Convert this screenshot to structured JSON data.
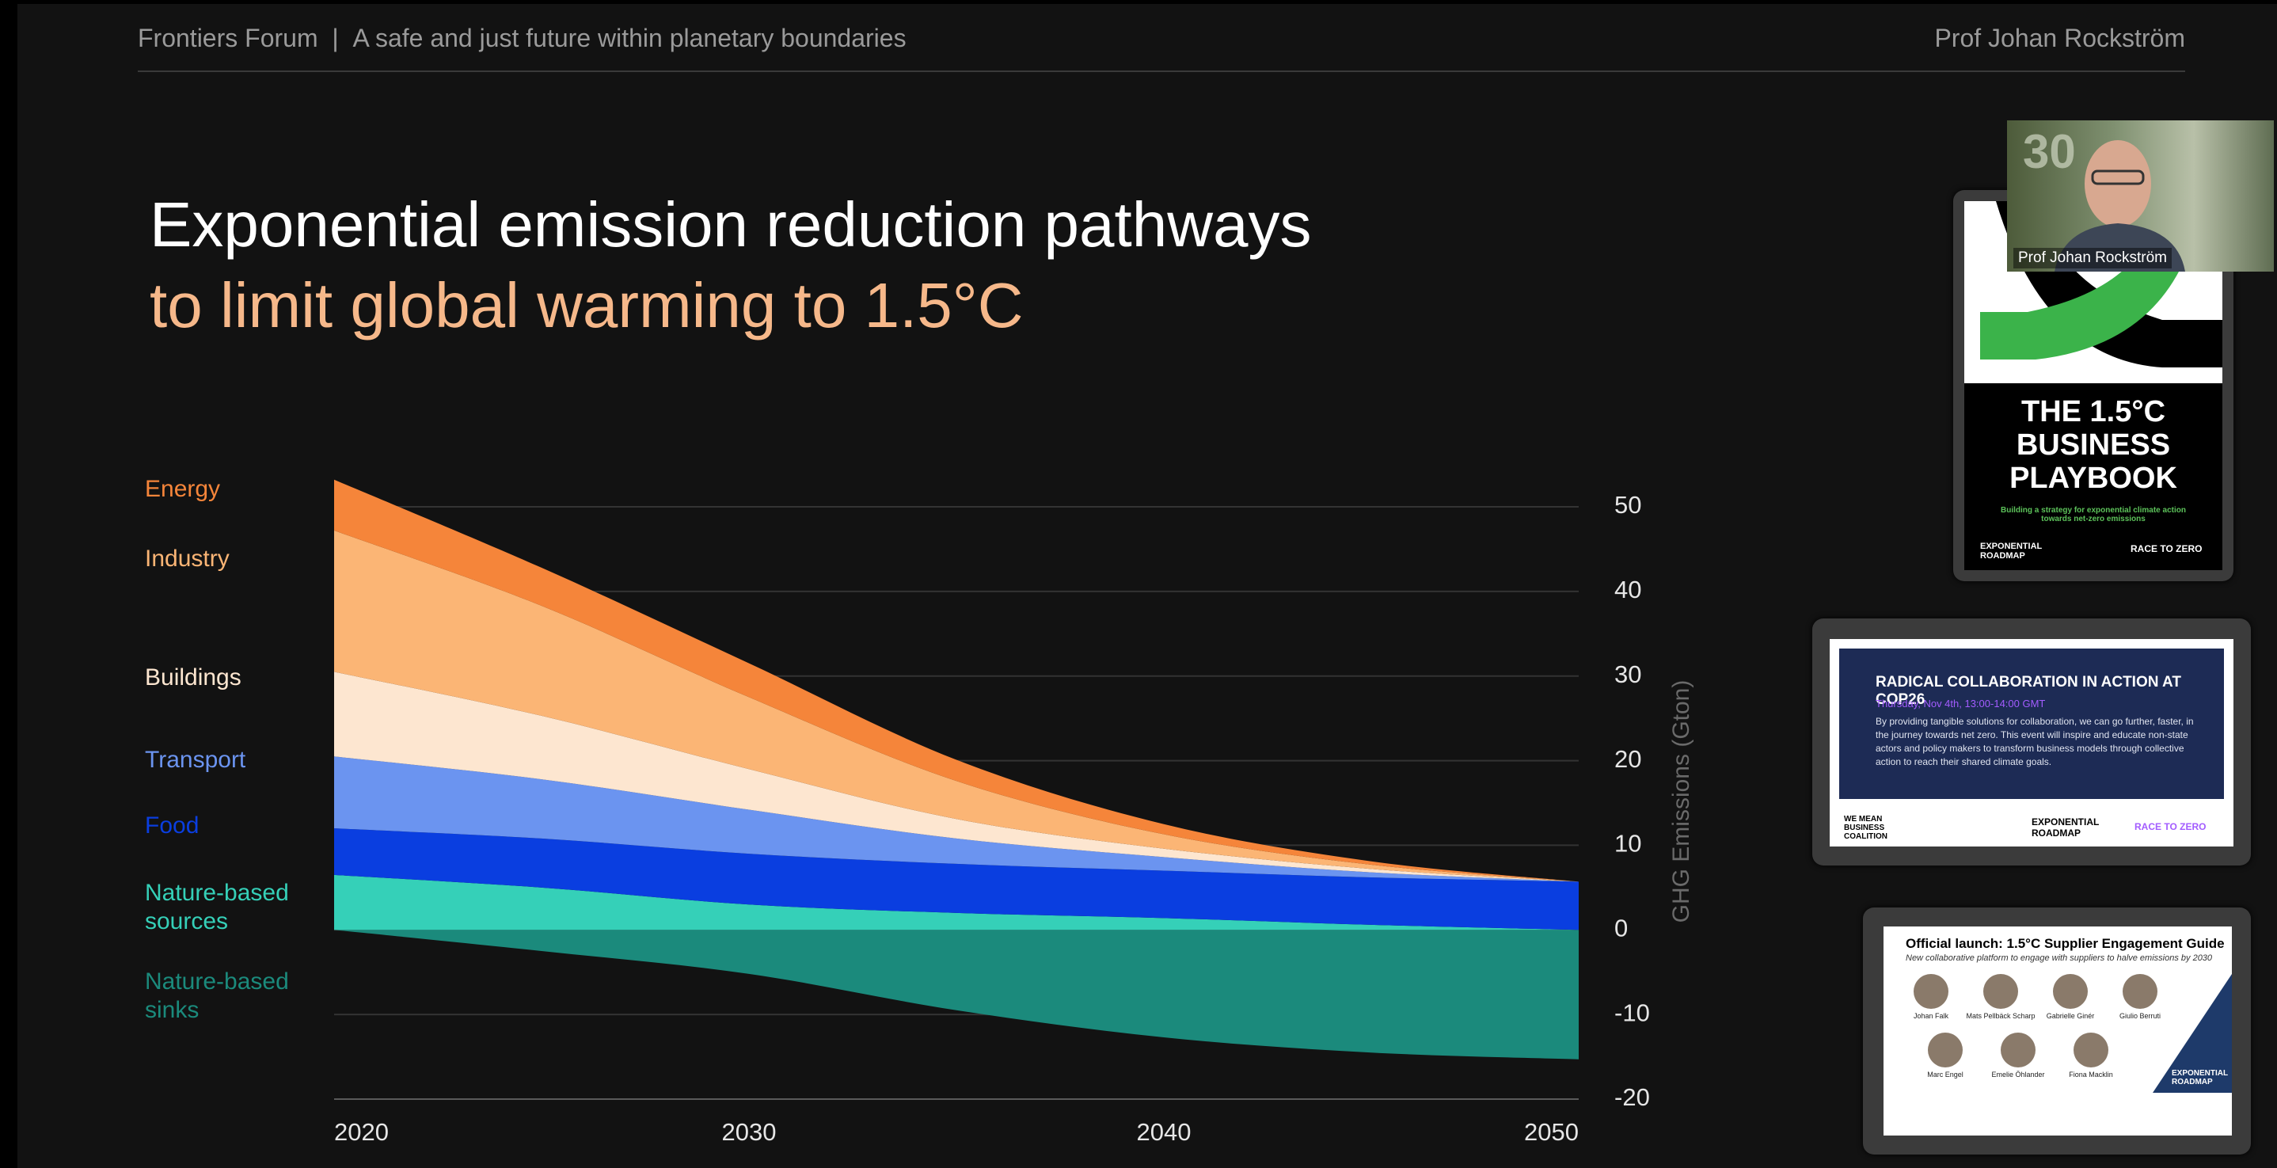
{
  "header": {
    "forum": "Frontiers Forum",
    "separator": "|",
    "subtitle": "A safe and just future within planetary boundaries",
    "speaker": "Prof Johan Rockström"
  },
  "chart_data": {
    "type": "area",
    "stacked": true,
    "grid": true,
    "title": "Exponential emission reduction pathways",
    "subtitle": "to limit global warming to 1.5°C",
    "y_label": "GHG Emissions (Gton)",
    "x": [
      2020,
      2025,
      2030,
      2035,
      2040,
      2045,
      2050
    ],
    "xlim": [
      2020,
      2050
    ],
    "xticks": [
      2020,
      2030,
      2040,
      2050
    ],
    "ylim": [
      -20,
      50
    ],
    "yticks": [
      -20,
      -10,
      0,
      10,
      20,
      30,
      40,
      50
    ],
    "series": [
      {
        "name": "Nature-based sinks",
        "color": "#1b8a7c",
        "values": [
          0,
          -2.5,
          -5.2,
          -9.5,
          -12.7,
          -14.5,
          -15.3
        ]
      },
      {
        "name": "Nature-based sources",
        "color": "#35d0b8",
        "values": [
          6.5,
          5,
          3,
          2,
          1.4,
          0.6,
          0
        ]
      },
      {
        "name": "Food",
        "color": "#0a3ee0",
        "values": [
          5.5,
          5.8,
          6,
          5.8,
          5.6,
          5.6,
          5.7
        ]
      },
      {
        "name": "Transport",
        "color": "#6b94f0",
        "values": [
          8.5,
          7,
          5.2,
          3,
          1.6,
          0.6,
          0
        ]
      },
      {
        "name": "Buildings",
        "color": "#fde6d0",
        "values": [
          10,
          7.5,
          4.8,
          2.3,
          1,
          0.4,
          0
        ]
      },
      {
        "name": "Industry",
        "color": "#fbb575",
        "values": [
          16.7,
          13,
          8.5,
          4.5,
          1.7,
          0.5,
          0
        ]
      },
      {
        "name": "Energy",
        "color": "#f5853a",
        "values": [
          6,
          4.5,
          4,
          2.5,
          1.2,
          0.4,
          0
        ]
      }
    ]
  },
  "sidebar": {
    "video": {
      "label": "Prof Johan Rockström"
    },
    "playbook": {
      "title": [
        "THE 1.5°C",
        "BUSINESS",
        "PLAYBOOK"
      ],
      "tagline": "Building a strategy for exponential climate action towards net-zero emissions",
      "logos": [
        "EXPONENTIAL ROADMAP",
        "RACE TO ZERO"
      ]
    },
    "cop26": {
      "title": "RADICAL COLLABORATION IN ACTION AT COP26",
      "date": "Thursday, Nov 4th, 13:00-14:00 GMT",
      "body": "By providing tangible solutions for collaboration, we can go further, faster, in the journey towards net zero. This event will inspire and educate non-state actors and policy makers to transform business models through collective action to reach their shared climate goals.",
      "logos": [
        "WE MEAN BUSINESS COALITION",
        "EXPONENTIAL ROADMAP",
        "RACE TO ZERO"
      ]
    },
    "supplier": {
      "title": "Official launch: 1.5°C Supplier Engagement Guide",
      "subtitle": "New collaborative platform to engage with suppliers to halve emissions by 2030",
      "speakers": [
        "Johan Falk",
        "Mats Pellbäck Scharp",
        "Gabrielle Ginér",
        "Giulio Berruti",
        "Marc Engel",
        "Emelie Öhlander",
        "Fiona Macklin"
      ],
      "brand": "EXPONENTIAL ROADMAP"
    }
  }
}
